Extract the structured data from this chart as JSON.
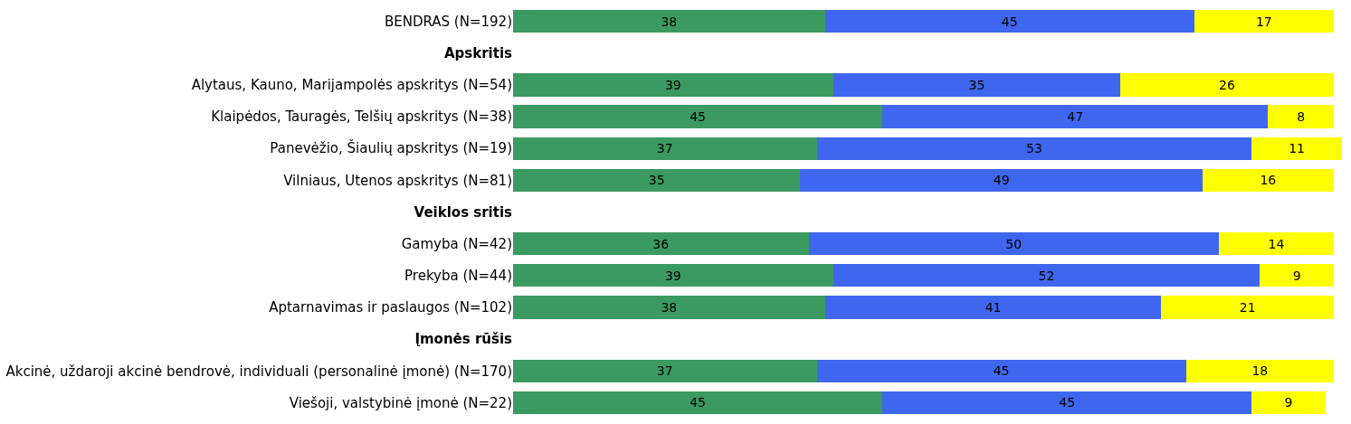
{
  "chart_data": {
    "type": "bar",
    "orientation": "horizontal",
    "stacked": true,
    "data_labels": true,
    "tick_labels": "y",
    "xlim": [
      0,
      101
    ],
    "categories": [
      "BENDRAS (N=192)",
      "Apskritis",
      "Alytaus, Kauno, Marijampolės apskritys (N=54)",
      "Klaipėdos, Tauragės, Telšių apskritys (N=38)",
      "Panevėžio, Šiaulių apskritys (N=19)",
      "Vilniaus, Utenos apskritys (N=81)",
      "Veiklos sritis",
      "Gamyba (N=42)",
      "Prekyba (N=44)",
      "Aptarnavimas ir paslaugos (N=102)",
      "Įmonės rūšis",
      "Akcinė, uždaroji akcinė bendrovė, individuali (personalinė įmonė) (N=170)",
      "Viešoji, valstybinė įmonė (N=22)"
    ],
    "series": [
      {
        "color": "#3a9a5f",
        "values": [
          38,
          null,
          39,
          45,
          37,
          35,
          null,
          36,
          39,
          38,
          null,
          37,
          45
        ]
      },
      {
        "color": "#3f66ee",
        "values": [
          45,
          null,
          35,
          47,
          53,
          49,
          null,
          50,
          52,
          41,
          null,
          45,
          45
        ]
      },
      {
        "color": "#ffff00",
        "values": [
          17,
          null,
          26,
          8,
          11,
          16,
          null,
          14,
          9,
          21,
          null,
          18,
          9
        ]
      }
    ]
  }
}
